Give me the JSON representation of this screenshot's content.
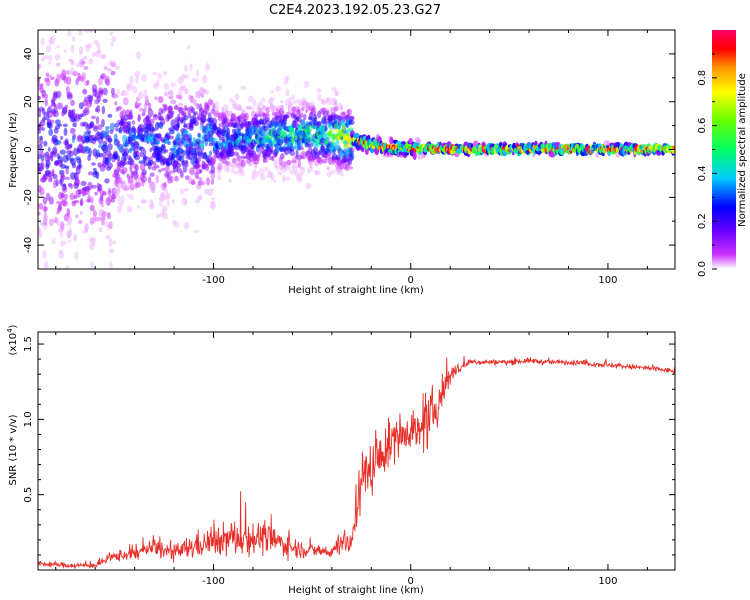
{
  "title": "C2E4.2023.192.05.23.G27",
  "chart_data": [
    {
      "type": "heatmap",
      "xlabel": "Height of straight line (km)",
      "ylabel": "Frequency (Hz)",
      "xlim": [
        -189,
        134
      ],
      "ylim": [
        -50,
        50
      ],
      "x_ticks": [
        "-100",
        "0",
        "100"
      ],
      "y_ticks": [
        "-40",
        "-20",
        "0",
        "20",
        "40"
      ],
      "colorbar": {
        "label": "Normalized spectral amplitude",
        "range": [
          0,
          1
        ],
        "ticks": [
          "0.0",
          "0.2",
          "0.4",
          "0.6",
          "0.8"
        ],
        "colors": [
          "#ffffff",
          "#cc33ff",
          "#6600ff",
          "#0000ff",
          "#00ccff",
          "#00ff66",
          "#66ff00",
          "#ffff00",
          "#ff9900",
          "#ff0000",
          "#ff0066"
        ]
      },
      "ridge": {
        "x": [
          -189,
          -150,
          -120,
          -100,
          -80,
          -60,
          -45,
          -35,
          -28,
          -20,
          -10,
          0,
          10,
          20,
          60,
          134
        ],
        "frequency_hz": [
          2,
          3,
          3,
          4,
          5,
          6,
          6,
          5,
          4,
          2,
          1,
          0.5,
          0.3,
          0.2,
          0.2,
          0.2
        ],
        "amplitude": [
          0.25,
          0.3,
          0.35,
          0.38,
          0.42,
          0.5,
          0.55,
          0.7,
          0.8,
          0.9,
          0.9,
          0.9,
          0.92,
          0.92,
          0.92,
          0.9
        ]
      }
    },
    {
      "type": "line",
      "xlabel": "Height of straight line (km)",
      "ylabel": "SNR (10 * v/v)",
      "y_scale_label": "(x10",
      "y_scale_exponent": "4",
      "y_scale_suffix": ")",
      "xlim": [
        -189,
        134
      ],
      "ylim": [
        0,
        1.58
      ],
      "x_ticks": [
        "-100",
        "0",
        "100"
      ],
      "y_ticks": [
        "0.5",
        "1.0",
        "1.5"
      ],
      "line_color": "#e8302a",
      "series": [
        {
          "x": [
            -189,
            -170,
            -160,
            -150,
            -140,
            -130,
            -120,
            -110,
            -100,
            -90,
            -80,
            -70,
            -60,
            -50,
            -40,
            -35,
            -30,
            -28,
            -25,
            -20,
            -15,
            -10,
            -5,
            0,
            5,
            10,
            15,
            20,
            25,
            30,
            40,
            50,
            60,
            70,
            80,
            90,
            100,
            110,
            120,
            134
          ],
          "values": [
            0.04,
            0.03,
            0.03,
            0.09,
            0.11,
            0.15,
            0.11,
            0.16,
            0.19,
            0.21,
            0.22,
            0.2,
            0.15,
            0.13,
            0.12,
            0.2,
            0.16,
            0.4,
            0.6,
            0.68,
            0.75,
            0.85,
            0.9,
            0.95,
            0.9,
            1.0,
            1.15,
            1.3,
            1.34,
            1.38,
            1.38,
            1.38,
            1.39,
            1.38,
            1.38,
            1.37,
            1.36,
            1.35,
            1.34,
            1.32
          ],
          "noise": [
            0.02,
            0.02,
            0.02,
            0.04,
            0.05,
            0.07,
            0.06,
            0.1,
            0.1,
            0.14,
            0.13,
            0.1,
            0.08,
            0.05,
            0.05,
            0.1,
            0.08,
            0.2,
            0.2,
            0.2,
            0.18,
            0.17,
            0.15,
            0.15,
            0.15,
            0.2,
            0.15,
            0.08,
            0.04,
            0.02,
            0.02,
            0.02,
            0.02,
            0.02,
            0.02,
            0.02,
            0.02,
            0.02,
            0.02,
            0.02
          ]
        }
      ]
    }
  ]
}
